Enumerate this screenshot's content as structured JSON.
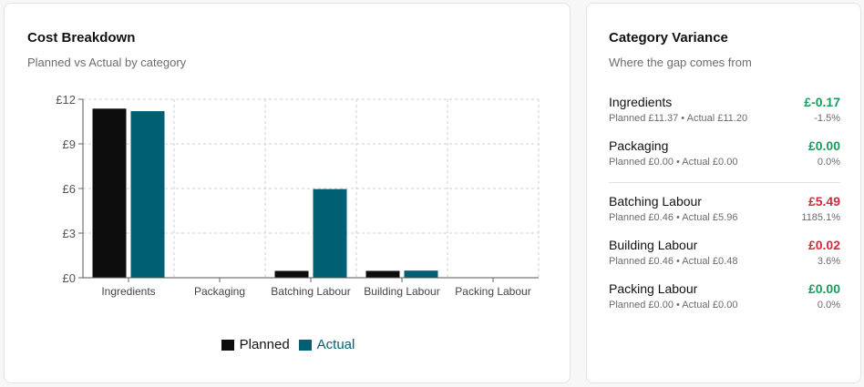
{
  "cost_breakdown": {
    "title": "Cost Breakdown",
    "subtitle": "Planned vs Actual by category"
  },
  "chart_data": {
    "type": "bar",
    "categories": [
      "Ingredients",
      "Packaging",
      "Batching Labour",
      "Building Labour",
      "Packing Labour"
    ],
    "series": [
      {
        "name": "Planned",
        "values": [
          11.37,
          0.0,
          0.46,
          0.46,
          0.0
        ],
        "color": "#0d0d0d"
      },
      {
        "name": "Actual",
        "values": [
          11.2,
          0.0,
          5.96,
          0.48,
          0.0
        ],
        "color": "#005f73"
      }
    ],
    "ylim": [
      0,
      12
    ],
    "yticks": [
      0,
      3,
      6,
      9,
      12
    ],
    "ytick_labels": [
      "£0",
      "£3",
      "£6",
      "£9",
      "£12"
    ],
    "grid": true,
    "legend": "bottom-center"
  },
  "category_variance": {
    "title": "Category Variance",
    "subtitle": "Where the gap comes from",
    "items": [
      {
        "name": "Ingredients",
        "amount": "£-0.17",
        "detail": "Planned £11.37 • Actual £11.20",
        "pct": "-1.5%",
        "color": "#1a9b5b"
      },
      {
        "name": "Packaging",
        "amount": "£0.00",
        "detail": "Planned £0.00 • Actual £0.00",
        "pct": "0.0%",
        "color": "#1a9b5b"
      },
      {
        "name": "Batching Labour",
        "amount": "£5.49",
        "detail": "Planned £0.46 • Actual £5.96",
        "pct": "1185.1%",
        "color": "#d6293f"
      },
      {
        "name": "Building Labour",
        "amount": "£0.02",
        "detail": "Planned £0.46 • Actual £0.48",
        "pct": "3.6%",
        "color": "#d6293f"
      },
      {
        "name": "Packing Labour",
        "amount": "£0.00",
        "detail": "Planned £0.00 • Actual £0.00",
        "pct": "0.0%",
        "color": "#1a9b5b"
      }
    ]
  }
}
